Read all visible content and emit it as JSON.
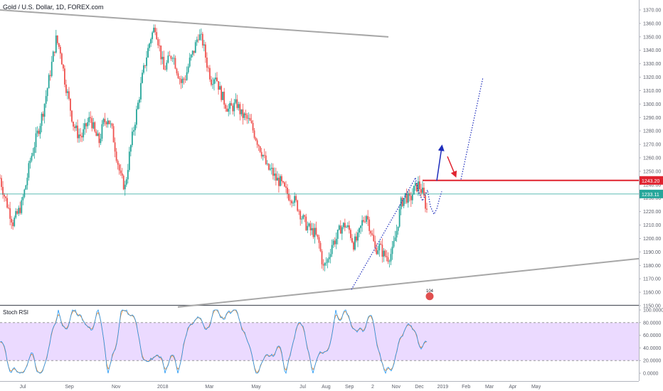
{
  "header": {
    "title": "Gold / U.S. Dollar, 1D, FOREX.com"
  },
  "rsi": {
    "label": "Stoch RSI"
  },
  "colors": {
    "up": "#26a69a",
    "down": "#ef5350",
    "resistance": "#e0232f",
    "current_line": "#26a69a",
    "rsi_fill": "#e8d3ff",
    "rsi_k": "#2196f3",
    "rsi_d": "#f57f17",
    "trend": "#a7a7a7",
    "projection": "#1e2dbb"
  },
  "chart_data": {
    "type": "candlestick",
    "title": "Gold / U.S. Dollar, 1D, FOREX.com",
    "price_axis": {
      "range": [
        1150,
        1372
      ],
      "ticks": [
        1150,
        1160,
        1170,
        1180,
        1190,
        1200,
        1210,
        1220,
        1230,
        1240,
        1250,
        1260,
        1270,
        1280,
        1290,
        1300,
        1310,
        1320,
        1330,
        1340,
        1350,
        1360,
        1370
      ],
      "tick_labels": [
        "1150.00",
        "1160.00",
        "1170.00",
        "1180.00",
        "1190.00",
        "1200.00",
        "1210.00",
        "1220.00",
        "1230.00",
        "1240.00",
        "1250.00",
        "1260.00",
        "1270.00",
        "1280.00",
        "1290.00",
        "1300.00",
        "1310.00",
        "1320.00",
        "1330.00",
        "1340.00",
        "1350.00",
        "1360.00",
        "1370.00"
      ]
    },
    "time_axis": {
      "labels": [
        {
          "label": "Jul",
          "month_index": 0
        },
        {
          "label": "Sep",
          "month_index": 2
        },
        {
          "label": "Nov",
          "month_index": 4
        },
        {
          "label": "2018",
          "month_index": 6
        },
        {
          "label": "Mar",
          "month_index": 8
        },
        {
          "label": "May",
          "month_index": 10
        },
        {
          "label": "Jul",
          "month_index": 12
        },
        {
          "label": "Aug",
          "month_index": 13
        },
        {
          "label": "Sep",
          "month_index": 14
        },
        {
          "label": "2",
          "month_index": 15
        },
        {
          "label": "Nov",
          "month_index": 16
        },
        {
          "label": "Dec",
          "month_index": 17
        },
        {
          "label": "2019",
          "month_index": 18
        },
        {
          "label": "Feb",
          "month_index": 19
        },
        {
          "label": "Mar",
          "month_index": 20
        },
        {
          "label": "Apr",
          "month_index": 21
        },
        {
          "label": "May",
          "month_index": 22
        }
      ]
    },
    "closes": [
      1245,
      1232,
      1222,
      1212,
      1218,
      1225,
      1240,
      1258,
      1270,
      1282,
      1295,
      1312,
      1330,
      1348,
      1340,
      1318,
      1302,
      1285,
      1278,
      1276,
      1284,
      1290,
      1278,
      1272,
      1286,
      1290,
      1280,
      1262,
      1245,
      1238,
      1262,
      1282,
      1300,
      1320,
      1336,
      1350,
      1358,
      1342,
      1325,
      1332,
      1338,
      1326,
      1316,
      1320,
      1332,
      1340,
      1352,
      1346,
      1330,
      1318,
      1322,
      1310,
      1302,
      1296,
      1298,
      1300,
      1292,
      1290,
      1286,
      1278,
      1270,
      1262,
      1252,
      1250,
      1244,
      1242,
      1236,
      1232,
      1230,
      1224,
      1216,
      1210,
      1206,
      1204,
      1196,
      1178,
      1184,
      1196,
      1200,
      1208,
      1210,
      1206,
      1196,
      1200,
      1212,
      1218,
      1206,
      1192,
      1194,
      1188,
      1186,
      1190,
      1206,
      1226,
      1232,
      1228,
      1236,
      1240,
      1234,
      1221
    ],
    "current_price": 1233.11,
    "current_price_label": "1233.11",
    "resistance": 1243.2,
    "resistance_label": "1243.20",
    "marker_label": "104",
    "stoch_rsi": {
      "axis_ticks": [
        0,
        20,
        40,
        60,
        80,
        100
      ],
      "axis_labels": [
        "0.0000",
        "20.0000",
        "40.0000",
        "60.0000",
        "80.0000",
        "100.0000"
      ],
      "upper_band": 80,
      "lower_band": 20
    }
  }
}
